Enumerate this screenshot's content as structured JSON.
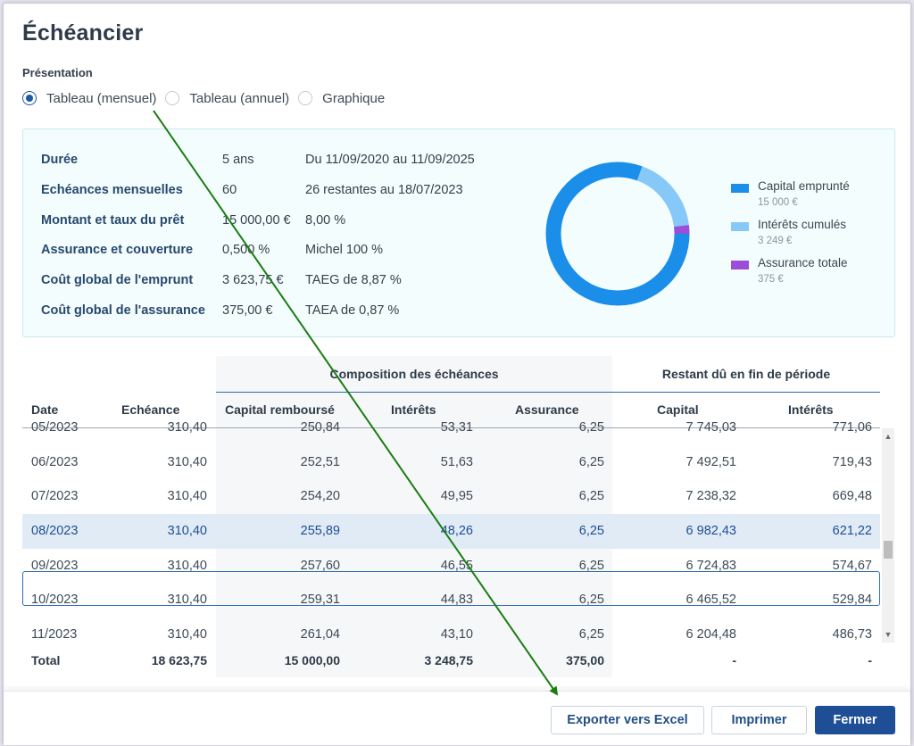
{
  "dialog": {
    "title": "Échéancier"
  },
  "presentation": {
    "label": "Présentation",
    "options": [
      {
        "label": "Tableau (mensuel)",
        "checked": true
      },
      {
        "label": "Tableau (annuel)",
        "checked": false
      },
      {
        "label": "Graphique",
        "checked": false
      }
    ]
  },
  "summary": {
    "rows": [
      {
        "key": "Durée",
        "v1": "5 ans",
        "v2": "Du 11/09/2020 au 11/09/2025"
      },
      {
        "key": "Echéances mensuelles",
        "v1": "60",
        "v2": "26 restantes au 18/07/2023"
      },
      {
        "key": "Montant et taux du prêt",
        "v1": "15 000,00 €",
        "v2": "8,00 %"
      },
      {
        "key": "Assurance et couverture",
        "v1": "0,500 %",
        "v2": "Michel 100 %"
      },
      {
        "key": "Coût global de l'emprunt",
        "v1": "3 623,75 €",
        "v2": "TAEG de 8,87 %"
      },
      {
        "key": "Coût global de l'assurance",
        "v1": "375,00 €",
        "v2": "TAEA de 0,87 %"
      }
    ]
  },
  "chart_data": {
    "type": "pie",
    "categories": [
      "Capital emprunté",
      "Intérêts cumulés",
      "Assurance totale"
    ],
    "values": [
      15000,
      3249,
      375
    ],
    "value_labels": [
      "15 000 €",
      "3 249 €",
      "375 €"
    ],
    "colors": [
      "#1a8ee8",
      "#86c8f7",
      "#9b4ddb"
    ],
    "legend_position": "right",
    "donut": true
  },
  "table": {
    "group_composition": "Composition des échéances",
    "group_restant": "Restant dû en fin de période",
    "headers": {
      "date": "Date",
      "echeance": "Echéance",
      "capital_rembourse": "Capital remboursé",
      "interets": "Intérêts",
      "assurance": "Assurance",
      "capital": "Capital",
      "interets_restants": "Intérêts"
    },
    "rows": [
      {
        "date": "05/2023",
        "echeance": "310,40",
        "capital_rembourse": "250,84",
        "interets": "53,31",
        "assurance": "6,25",
        "capital": "7 745,03",
        "interets_restants": "771,06",
        "selected": false
      },
      {
        "date": "06/2023",
        "echeance": "310,40",
        "capital_rembourse": "252,51",
        "interets": "51,63",
        "assurance": "6,25",
        "capital": "7 492,51",
        "interets_restants": "719,43",
        "selected": false
      },
      {
        "date": "07/2023",
        "echeance": "310,40",
        "capital_rembourse": "254,20",
        "interets": "49,95",
        "assurance": "6,25",
        "capital": "7 238,32",
        "interets_restants": "669,48",
        "selected": false
      },
      {
        "date": "08/2023",
        "echeance": "310,40",
        "capital_rembourse": "255,89",
        "interets": "48,26",
        "assurance": "6,25",
        "capital": "6 982,43",
        "interets_restants": "621,22",
        "selected": true
      },
      {
        "date": "09/2023",
        "echeance": "310,40",
        "capital_rembourse": "257,60",
        "interets": "46,55",
        "assurance": "6,25",
        "capital": "6 724,83",
        "interets_restants": "574,67",
        "selected": false
      },
      {
        "date": "10/2023",
        "echeance": "310,40",
        "capital_rembourse": "259,31",
        "interets": "44,83",
        "assurance": "6,25",
        "capital": "6 465,52",
        "interets_restants": "529,84",
        "selected": false
      },
      {
        "date": "11/2023",
        "echeance": "310,40",
        "capital_rembourse": "261,04",
        "interets": "43,10",
        "assurance": "6,25",
        "capital": "6 204,48",
        "interets_restants": "486,73",
        "selected": false
      }
    ],
    "total": {
      "label": "Total",
      "echeance": "18 623,75",
      "capital_rembourse": "15 000,00",
      "interets": "3 248,75",
      "assurance": "375,00",
      "capital": "-",
      "interets_restants": "-"
    }
  },
  "footer": {
    "export_label": "Exporter vers Excel",
    "print_label": "Imprimer",
    "close_label": "Fermer"
  },
  "icons": {
    "scroll_up": "arrow-up-icon",
    "scroll_down": "arrow-down-icon"
  },
  "colors": {
    "accent": "#1e4f96",
    "selection": "#e1ebf6",
    "annotation_arrow": "#1a7d12"
  }
}
